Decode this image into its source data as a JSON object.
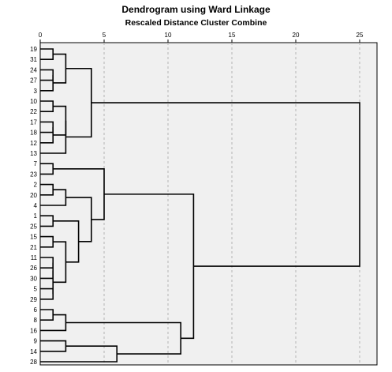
{
  "chart_data": {
    "type": "dendrogram",
    "title": "Dendrogram using Ward Linkage",
    "subtitle": "Rescaled Distance Cluster Combine",
    "x_ticks": [
      0,
      5,
      10,
      15,
      20,
      25
    ],
    "xlim": [
      0,
      25
    ],
    "grid": "vertical dashed",
    "leaves": [
      "19",
      "31",
      "24",
      "27",
      "3",
      "10",
      "22",
      "17",
      "18",
      "12",
      "13",
      "7",
      "23",
      "2",
      "20",
      "4",
      "1",
      "25",
      "15",
      "21",
      "11",
      "26",
      "30",
      "5",
      "29",
      "6",
      "8",
      "16",
      "9",
      "14",
      "28"
    ],
    "merges": [
      {
        "a": "L0",
        "b": "L1",
        "d": 1.0
      },
      {
        "a": "L2",
        "b": "L3",
        "d": 1.0
      },
      {
        "a": "M1",
        "b": "L4",
        "d": 1.0
      },
      {
        "a": "M0",
        "b": "M2",
        "d": 2.0
      },
      {
        "a": "L5",
        "b": "L6",
        "d": 1.0
      },
      {
        "a": "L7",
        "b": "L8",
        "d": 1.0
      },
      {
        "a": "M5",
        "b": "L9",
        "d": 1.0
      },
      {
        "a": "M4",
        "b": "M6",
        "d": 2.0
      },
      {
        "a": "M7",
        "b": "L10",
        "d": 2.0
      },
      {
        "a": "M3",
        "b": "M8",
        "d": 4.0
      },
      {
        "a": "L11",
        "b": "L12",
        "d": 1.0
      },
      {
        "a": "L13",
        "b": "L14",
        "d": 1.0
      },
      {
        "a": "M11",
        "b": "L15",
        "d": 2.0
      },
      {
        "a": "L16",
        "b": "L17",
        "d": 1.0
      },
      {
        "a": "L18",
        "b": "L19",
        "d": 1.0
      },
      {
        "a": "L20",
        "b": "L21",
        "d": 1.0
      },
      {
        "a": "M15",
        "b": "L22",
        "d": 1.0
      },
      {
        "a": "L23",
        "b": "L24",
        "d": 1.0
      },
      {
        "a": "M16",
        "b": "M17",
        "d": 1.0
      },
      {
        "a": "M14",
        "b": "M18",
        "d": 2.0
      },
      {
        "a": "M13",
        "b": "M19",
        "d": 3.0
      },
      {
        "a": "M12",
        "b": "M20",
        "d": 4.0
      },
      {
        "a": "M10",
        "b": "M21",
        "d": 5.0
      },
      {
        "a": "L25",
        "b": "L26",
        "d": 1.0
      },
      {
        "a": "M23",
        "b": "L27",
        "d": 2.0
      },
      {
        "a": "L28",
        "b": "L29",
        "d": 2.0
      },
      {
        "a": "M25",
        "b": "L30",
        "d": 6.0
      },
      {
        "a": "M24",
        "b": "M26",
        "d": 11.0
      },
      {
        "a": "M22",
        "b": "M27",
        "d": 12.0
      },
      {
        "a": "M9",
        "b": "M28",
        "d": 25.0
      }
    ]
  }
}
